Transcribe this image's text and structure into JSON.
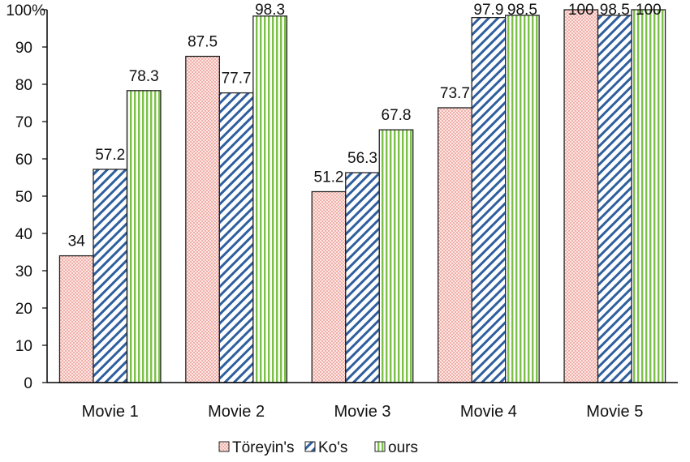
{
  "chart_data": {
    "type": "bar",
    "title": "",
    "xlabel": "",
    "ylabel": "",
    "categories": [
      "Movie 1",
      "Movie 2",
      "Movie 3",
      "Movie 4",
      "Movie 5"
    ],
    "series": [
      {
        "name": "Töreyin's",
        "values": [
          34,
          87.5,
          51.2,
          73.7,
          100
        ],
        "labels": [
          "34",
          "87.5",
          "51.2",
          "73.7",
          "100"
        ],
        "color": "#f4a6a0",
        "pattern": "dots"
      },
      {
        "name": "Ko's",
        "values": [
          57.2,
          77.7,
          56.3,
          97.9,
          98.5
        ],
        "labels": [
          "57.2",
          "77.7",
          "56.3",
          "97.9",
          "98.5"
        ],
        "color": "#2f5f9e",
        "pattern": "diagonal"
      },
      {
        "name": "ours",
        "values": [
          78.3,
          98.3,
          67.8,
          98.5,
          100
        ],
        "labels": [
          "78.3",
          "98.3",
          "67.8",
          "98.5",
          "100"
        ],
        "color": "#7cc04a",
        "pattern": "vertical"
      }
    ],
    "ylim": [
      0,
      100
    ],
    "yticks": [
      "0",
      "10",
      "20",
      "30",
      "40",
      "50",
      "60",
      "70",
      "80",
      "90",
      "100%"
    ],
    "grid": false,
    "legend": "bottom"
  }
}
